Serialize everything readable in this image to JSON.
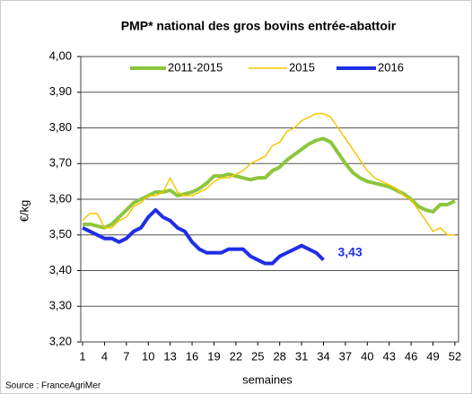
{
  "chart_data": {
    "type": "line",
    "title": "PMP* national des gros bovins entrée-abattoir",
    "y_label": "€/kg",
    "x_label": "semaines",
    "source": "Source : FranceAgriMer",
    "x": [
      1,
      2,
      3,
      4,
      5,
      6,
      7,
      8,
      9,
      10,
      11,
      12,
      13,
      14,
      15,
      16,
      17,
      18,
      19,
      20,
      21,
      22,
      23,
      24,
      25,
      26,
      27,
      28,
      29,
      30,
      31,
      32,
      33,
      34,
      35,
      36,
      37,
      38,
      39,
      40,
      41,
      42,
      43,
      44,
      45,
      46,
      47,
      48,
      49,
      50,
      51,
      52
    ],
    "series": [
      {
        "name": "2011-2015",
        "color": "#8cc63e",
        "width": 4,
        "values": [
          3.53,
          3.53,
          3.525,
          3.52,
          3.53,
          3.55,
          3.57,
          3.59,
          3.6,
          3.61,
          3.62,
          3.62,
          3.625,
          3.61,
          3.615,
          3.62,
          3.63,
          3.645,
          3.665,
          3.665,
          3.67,
          3.665,
          3.66,
          3.655,
          3.66,
          3.66,
          3.68,
          3.69,
          3.71,
          3.725,
          3.74,
          3.755,
          3.765,
          3.77,
          3.76,
          3.73,
          3.7,
          3.675,
          3.66,
          3.65,
          3.645,
          3.64,
          3.635,
          3.625,
          3.615,
          3.6,
          3.58,
          3.57,
          3.565,
          3.585,
          3.585,
          3.595
        ]
      },
      {
        "name": "2015",
        "color": "#f7c600",
        "width": 1.5,
        "values": [
          3.54,
          3.56,
          3.56,
          3.52,
          3.52,
          3.54,
          3.55,
          3.58,
          3.59,
          3.61,
          3.61,
          3.62,
          3.66,
          3.62,
          3.61,
          3.61,
          3.62,
          3.63,
          3.65,
          3.66,
          3.66,
          3.67,
          3.68,
          3.7,
          3.71,
          3.72,
          3.75,
          3.76,
          3.79,
          3.8,
          3.82,
          3.83,
          3.84,
          3.84,
          3.83,
          3.8,
          3.77,
          3.74,
          3.71,
          3.68,
          3.66,
          3.65,
          3.64,
          3.63,
          3.61,
          3.6,
          3.57,
          3.54,
          3.51,
          3.52,
          3.5,
          3.5
        ]
      },
      {
        "name": "2016",
        "color": "#1f2ee6",
        "width": 4,
        "values": [
          3.52,
          3.51,
          3.5,
          3.49,
          3.49,
          3.48,
          3.49,
          3.51,
          3.52,
          3.55,
          3.57,
          3.55,
          3.54,
          3.52,
          3.51,
          3.48,
          3.46,
          3.45,
          3.45,
          3.45,
          3.46,
          3.46,
          3.46,
          3.44,
          3.43,
          3.42,
          3.42,
          3.44,
          3.45,
          3.46,
          3.47,
          3.46,
          3.45,
          3.43,
          null,
          null,
          null,
          null,
          null,
          null,
          null,
          null,
          null,
          null,
          null,
          null,
          null,
          null,
          null,
          null,
          null,
          null
        ],
        "value_labels": [
          null,
          null,
          null,
          null,
          null,
          null,
          null,
          null,
          null,
          null,
          null,
          null,
          null,
          null,
          null,
          null,
          null,
          null,
          null,
          null,
          null,
          null,
          null,
          null,
          null,
          null,
          null,
          null,
          null,
          null,
          null,
          null,
          null,
          "3,43",
          null,
          null,
          null,
          null,
          null,
          null,
          null,
          null,
          null,
          null,
          null,
          null,
          null,
          null,
          null,
          null,
          null,
          null
        ]
      }
    ],
    "xlim": [
      0.75,
      52.5
    ],
    "xticks": [
      1,
      4,
      7,
      10,
      13,
      16,
      19,
      22,
      25,
      28,
      31,
      34,
      37,
      40,
      43,
      46,
      49,
      52
    ],
    "ylim": [
      3.2,
      4.0
    ],
    "yticks": [
      {
        "value": 3.2,
        "label": "3,20"
      },
      {
        "value": 3.3,
        "label": "3,30"
      },
      {
        "value": 3.4,
        "label": "3,40"
      },
      {
        "value": 3.5,
        "label": "3,50"
      },
      {
        "value": 3.6,
        "label": "3,60"
      },
      {
        "value": 3.7,
        "label": "3,70"
      },
      {
        "value": 3.8,
        "label": "3,80"
      },
      {
        "value": 3.9,
        "label": "3,90"
      },
      {
        "value": 4.0,
        "label": "4,00"
      }
    ],
    "grid": true,
    "legend": "top"
  }
}
